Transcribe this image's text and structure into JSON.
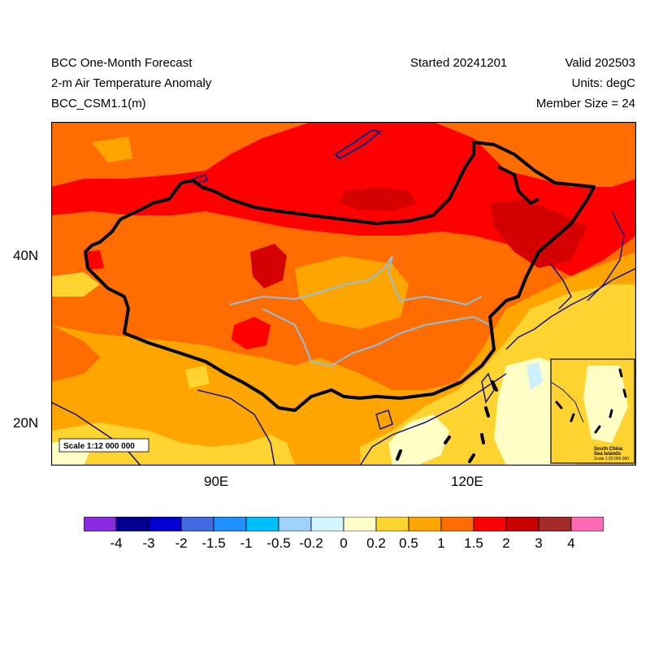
{
  "header": {
    "title": "BCC One-Month Forecast",
    "variable": "2-m Air Temperature Anomaly",
    "model": "BCC_CSM1.1(m)",
    "started": "Started 20241201",
    "valid": "Valid 202503",
    "units": "Units: degC",
    "members": "Member Size = 24"
  },
  "map": {
    "lat_ticks": [
      "40N",
      "20N"
    ],
    "lon_ticks": [
      "90E",
      "120E"
    ],
    "scale_label": "Scale 1:12 000 000",
    "inset": {
      "line1": "South China",
      "line2": "Sea Islands",
      "scale": "Scale 1:20 000 000"
    },
    "colors": {
      "background": "#ffa500",
      "anom_2_3": "#d50000",
      "anom_1_5_2": "#ff0000",
      "anom_1_1_5": "#ff6d00",
      "anom_0_5_1": "#ffa500",
      "anom_0_2_0_5": "#ffd430",
      "anom_0_0_2": "#ffffc5",
      "anom_neg": "#ccf0ff",
      "border": "#000000",
      "coast": "#101080",
      "river": "#90c0e0"
    }
  },
  "colorbar": {
    "colors": [
      "#8a2be2",
      "#000090",
      "#0000d0",
      "#4169e1",
      "#1e90ff",
      "#00bfff",
      "#a0d2ff",
      "#d2f5ff",
      "#ffffc8",
      "#ffd430",
      "#ffa500",
      "#ff6d00",
      "#ff0000",
      "#c80000",
      "#a52a2a",
      "#ff69b4"
    ],
    "labels": [
      "-4",
      "-3",
      "-2",
      "-1.5",
      "-1",
      "-0.5",
      "-0.2",
      "0",
      "0.2",
      "0.5",
      "1",
      "1.5",
      "2",
      "3",
      "4"
    ]
  }
}
